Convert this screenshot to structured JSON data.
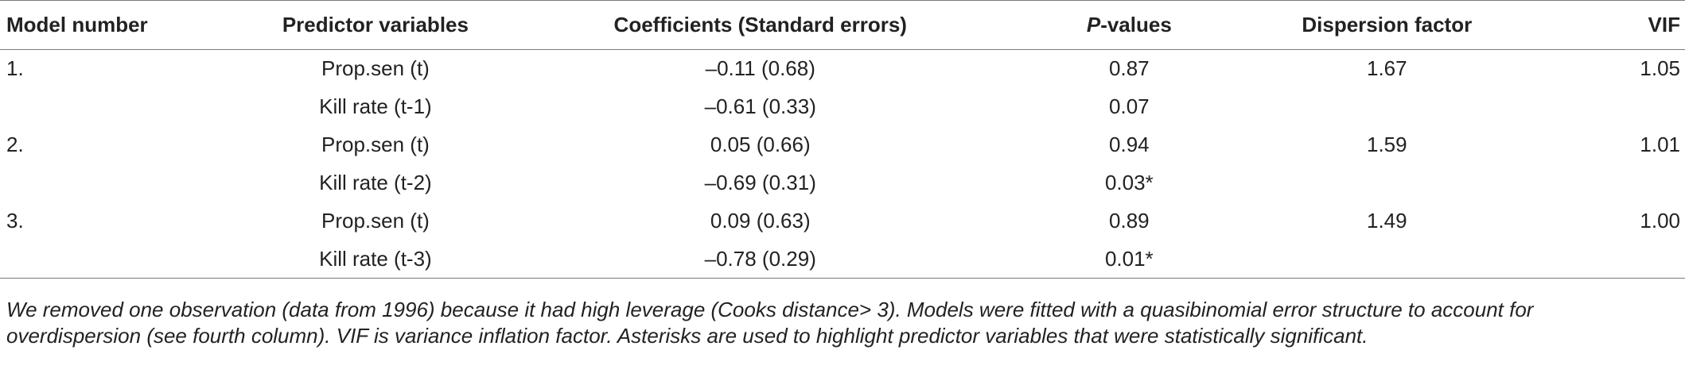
{
  "table": {
    "headers": {
      "model_number": "Model number",
      "predictor_variables": "Predictor variables",
      "coefficients": "Coefficients (Standard errors)",
      "p_values_p": "P",
      "p_values_rest": "-values",
      "dispersion_factor": "Dispersion factor",
      "vif": "VIF"
    },
    "rows": [
      {
        "model": "1.",
        "predictor": "Prop.sen (t)",
        "coefficient": "–0.11 (0.68)",
        "p_value": "0.87",
        "dispersion": "1.67",
        "vif": "1.05"
      },
      {
        "model": "",
        "predictor": "Kill rate (t-1)",
        "coefficient": "–0.61 (0.33)",
        "p_value": "0.07",
        "dispersion": "",
        "vif": ""
      },
      {
        "model": "2.",
        "predictor": "Prop.sen (t)",
        "coefficient": "0.05 (0.66)",
        "p_value": "0.94",
        "dispersion": "1.59",
        "vif": "1.01"
      },
      {
        "model": "",
        "predictor": "Kill rate (t-2)",
        "coefficient": "–0.69 (0.31)",
        "p_value": "0.03*",
        "dispersion": "",
        "vif": ""
      },
      {
        "model": "3.",
        "predictor": "Prop.sen (t)",
        "coefficient": "0.09 (0.63)",
        "p_value": "0.89",
        "dispersion": "1.49",
        "vif": "1.00"
      },
      {
        "model": "",
        "predictor": "Kill rate (t-3)",
        "coefficient": "–0.78 (0.29)",
        "p_value": "0.01*",
        "dispersion": "",
        "vif": ""
      }
    ]
  },
  "footnote": {
    "line1": "We removed one observation (data from 1996) because it had high leverage (Cooks distance> 3). Models were fitted with a quasibinomial error structure to account for",
    "line2": "overdispersion (see fourth column). VIF is variance inflation factor. Asterisks are used to highlight predictor variables that were statistically significant."
  }
}
